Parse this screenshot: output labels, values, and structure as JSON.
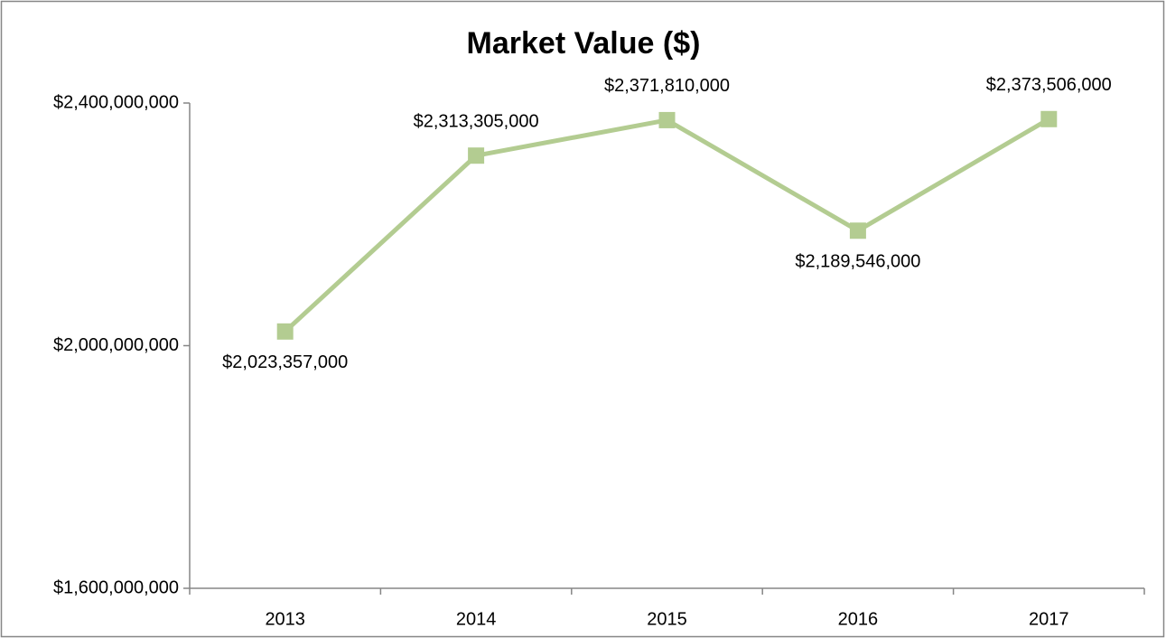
{
  "chart_data": {
    "type": "line",
    "title": "Market Value ($)",
    "categories": [
      "2013",
      "2014",
      "2015",
      "2016",
      "2017"
    ],
    "series": [
      {
        "name": "Market Value ($)",
        "color": "#b3cc91",
        "values": [
          2023357000,
          2313305000,
          2371810000,
          2189546000,
          2373506000
        ],
        "value_labels": [
          "$2,023,357,000",
          "$2,313,305,000",
          "$2,371,810,000",
          "$2,189,546,000",
          "$2,373,506,000"
        ]
      }
    ],
    "ylim": [
      1600000000,
      2400000000
    ],
    "yticks": [
      {
        "value": 1600000000,
        "label": "$1,600,000,000"
      },
      {
        "value": 2000000000,
        "label": "$2,000,000,000"
      },
      {
        "value": 2400000000,
        "label": "$2,400,000,000"
      }
    ],
    "grid": false
  }
}
